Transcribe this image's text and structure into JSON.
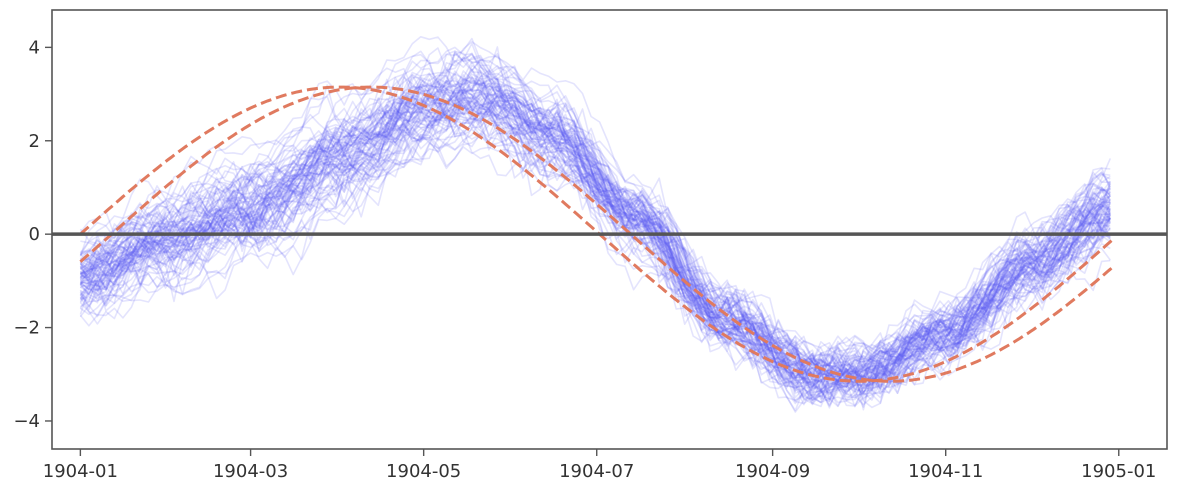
{
  "chart_data": {
    "type": "line",
    "title": "",
    "xlabel": "",
    "ylabel": "",
    "x_axis": {
      "type": "date",
      "range": [
        "1903-12-22",
        "1905-01-18"
      ],
      "ticks": [
        "1904-01",
        "1904-03",
        "1904-05",
        "1904-07",
        "1904-09",
        "1904-11",
        "1905-01"
      ]
    },
    "y_axis": {
      "range": [
        -4.6,
        4.8
      ],
      "ticks": [
        4,
        2,
        0,
        -2,
        -4
      ],
      "tick_labels": [
        "4",
        "2",
        "0",
        "−2",
        "−4"
      ]
    },
    "grid": false,
    "legend": "none",
    "reference_line": {
      "y": 0,
      "color": "#555555"
    },
    "ensemble": {
      "count": 90,
      "color": "#5a5af0",
      "opacity": 0.16,
      "x_start": "1904-01-01",
      "x_end": "1904-12-30",
      "step_days": 3,
      "mean_anchors": {
        "x": [
          "1904-01-01",
          "1904-02-01",
          "1904-03-01",
          "1904-04-01",
          "1904-05-01",
          "1904-05-20",
          "1904-06-15",
          "1904-07-15",
          "1904-08-15",
          "1904-09-15",
          "1904-10-01",
          "1904-11-01",
          "1904-12-01",
          "1904-12-30"
        ],
        "y": [
          -0.9,
          -0.1,
          0.6,
          1.7,
          2.7,
          3.0,
          2.2,
          0.4,
          -1.8,
          -3.0,
          -3.0,
          -2.1,
          -0.6,
          0.6
        ]
      },
      "spread": 0.38
    },
    "series": [
      {
        "style": "dashed",
        "color": "#e07a5f",
        "amplitude": 3.15,
        "period_days": 366,
        "phase_shift_days": 0,
        "x_start": "1904-01-01",
        "x_end": "1904-12-30"
      },
      {
        "style": "dashed",
        "color": "#e07a5f",
        "amplitude": 3.15,
        "period_days": 366,
        "phase_shift_days": 11,
        "x_start": "1904-01-01",
        "x_end": "1904-12-30"
      }
    ]
  }
}
